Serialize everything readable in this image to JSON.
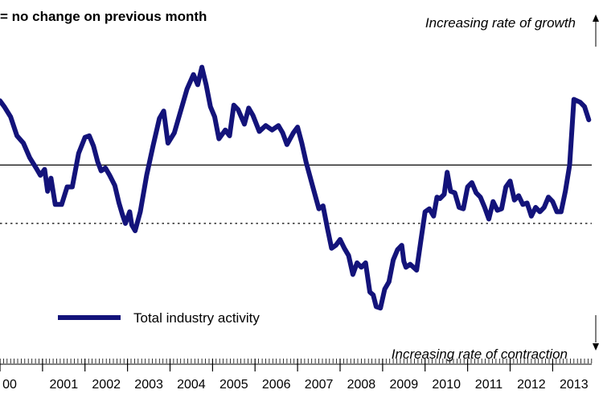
{
  "header": {
    "reference_note": "= no change on previous month",
    "growth_label": "Increasing rate of growth",
    "contraction_label": "Increasing rate of contraction"
  },
  "legend": {
    "label": "Total industry activity"
  },
  "colors": {
    "series": "#13137a",
    "axis": "#000000",
    "background": "#ffffff"
  },
  "chart_data": {
    "type": "line",
    "title": "",
    "xlabel": "",
    "ylabel": "",
    "xlim": [
      2000.0,
      2013.92
    ],
    "ylim": [
      -110,
      80
    ],
    "reference_lines": [
      {
        "value": 0,
        "style": "solid"
      },
      {
        "value": -40,
        "style": "dotted"
      }
    ],
    "x_ticks": [
      "00",
      "2001",
      "2002",
      "2003",
      "2004",
      "2005",
      "2006",
      "2007",
      "2008",
      "2009",
      "2010",
      "2011",
      "2012",
      "2013"
    ],
    "legend_position": "bottom-left",
    "series": [
      {
        "name": "Total industry activity",
        "points": [
          [
            2000.0,
            44
          ],
          [
            2000.1,
            40
          ],
          [
            2000.25,
            33
          ],
          [
            2000.4,
            20
          ],
          [
            2000.55,
            15
          ],
          [
            2000.7,
            5
          ],
          [
            2000.85,
            -2
          ],
          [
            2000.95,
            -7
          ],
          [
            2001.05,
            -3
          ],
          [
            2001.12,
            -18
          ],
          [
            2001.2,
            -9
          ],
          [
            2001.3,
            -27
          ],
          [
            2001.45,
            -27
          ],
          [
            2001.58,
            -15
          ],
          [
            2001.7,
            -15
          ],
          [
            2001.85,
            8
          ],
          [
            2002.0,
            19
          ],
          [
            2002.1,
            20
          ],
          [
            2002.2,
            13
          ],
          [
            2002.3,
            2
          ],
          [
            2002.38,
            -4
          ],
          [
            2002.48,
            -2
          ],
          [
            2002.58,
            -7
          ],
          [
            2002.7,
            -14
          ],
          [
            2002.8,
            -26
          ],
          [
            2002.88,
            -34
          ],
          [
            2002.95,
            -40
          ],
          [
            2003.05,
            -32
          ],
          [
            2003.1,
            -41
          ],
          [
            2003.18,
            -45
          ],
          [
            2003.3,
            -32
          ],
          [
            2003.45,
            -7
          ],
          [
            2003.6,
            13
          ],
          [
            2003.75,
            32
          ],
          [
            2003.85,
            37
          ],
          [
            2003.95,
            15
          ],
          [
            2004.1,
            22
          ],
          [
            2004.25,
            37
          ],
          [
            2004.4,
            52
          ],
          [
            2004.55,
            62
          ],
          [
            2004.65,
            55
          ],
          [
            2004.75,
            67
          ],
          [
            2004.85,
            55
          ],
          [
            2004.95,
            40
          ],
          [
            2005.05,
            33
          ],
          [
            2005.15,
            18
          ],
          [
            2005.3,
            24
          ],
          [
            2005.4,
            20
          ],
          [
            2005.5,
            41
          ],
          [
            2005.6,
            38
          ],
          [
            2005.75,
            28
          ],
          [
            2005.85,
            39
          ],
          [
            2005.95,
            34
          ],
          [
            2006.1,
            23
          ],
          [
            2006.25,
            27
          ],
          [
            2006.4,
            24
          ],
          [
            2006.55,
            27
          ],
          [
            2006.65,
            22
          ],
          [
            2006.75,
            14
          ],
          [
            2006.9,
            22
          ],
          [
            2007.0,
            26
          ],
          [
            2007.1,
            15
          ],
          [
            2007.2,
            2
          ],
          [
            2007.35,
            -14
          ],
          [
            2007.5,
            -30
          ],
          [
            2007.6,
            -28
          ],
          [
            2007.7,
            -43
          ],
          [
            2007.8,
            -57
          ],
          [
            2007.9,
            -55
          ],
          [
            2008.0,
            -51
          ],
          [
            2008.1,
            -57
          ],
          [
            2008.2,
            -62
          ],
          [
            2008.3,
            -75
          ],
          [
            2008.4,
            -67
          ],
          [
            2008.5,
            -70
          ],
          [
            2008.6,
            -67
          ],
          [
            2008.7,
            -87
          ],
          [
            2008.78,
            -89
          ],
          [
            2008.85,
            -97
          ],
          [
            2008.95,
            -98
          ],
          [
            2009.05,
            -85
          ],
          [
            2009.15,
            -80
          ],
          [
            2009.25,
            -65
          ],
          [
            2009.35,
            -58
          ],
          [
            2009.45,
            -55
          ],
          [
            2009.5,
            -66
          ],
          [
            2009.55,
            -70
          ],
          [
            2009.65,
            -68
          ],
          [
            2009.8,
            -72
          ],
          [
            2009.9,
            -52
          ],
          [
            2010.0,
            -32
          ],
          [
            2010.1,
            -30
          ],
          [
            2010.2,
            -35
          ],
          [
            2010.28,
            -22
          ],
          [
            2010.35,
            -23
          ],
          [
            2010.45,
            -20
          ],
          [
            2010.52,
            -5
          ],
          [
            2010.6,
            -18
          ],
          [
            2010.7,
            -19
          ],
          [
            2010.8,
            -29
          ],
          [
            2010.9,
            -30
          ],
          [
            2011.0,
            -15
          ],
          [
            2011.1,
            -12
          ],
          [
            2011.2,
            -19
          ],
          [
            2011.3,
            -22
          ],
          [
            2011.4,
            -29
          ],
          [
            2011.5,
            -37
          ],
          [
            2011.6,
            -25
          ],
          [
            2011.7,
            -31
          ],
          [
            2011.8,
            -30
          ],
          [
            2011.9,
            -15
          ],
          [
            2012.0,
            -11
          ],
          [
            2012.1,
            -24
          ],
          [
            2012.2,
            -21
          ],
          [
            2012.3,
            -27
          ],
          [
            2012.4,
            -26
          ],
          [
            2012.5,
            -35
          ],
          [
            2012.6,
            -29
          ],
          [
            2012.7,
            -32
          ],
          [
            2012.8,
            -29
          ],
          [
            2012.9,
            -22
          ],
          [
            2013.0,
            -25
          ],
          [
            2013.1,
            -32
          ],
          [
            2013.2,
            -32
          ],
          [
            2013.3,
            -18
          ],
          [
            2013.4,
            0
          ],
          [
            2013.5,
            45
          ],
          [
            2013.65,
            43
          ],
          [
            2013.75,
            40
          ],
          [
            2013.85,
            31
          ]
        ]
      }
    ]
  }
}
